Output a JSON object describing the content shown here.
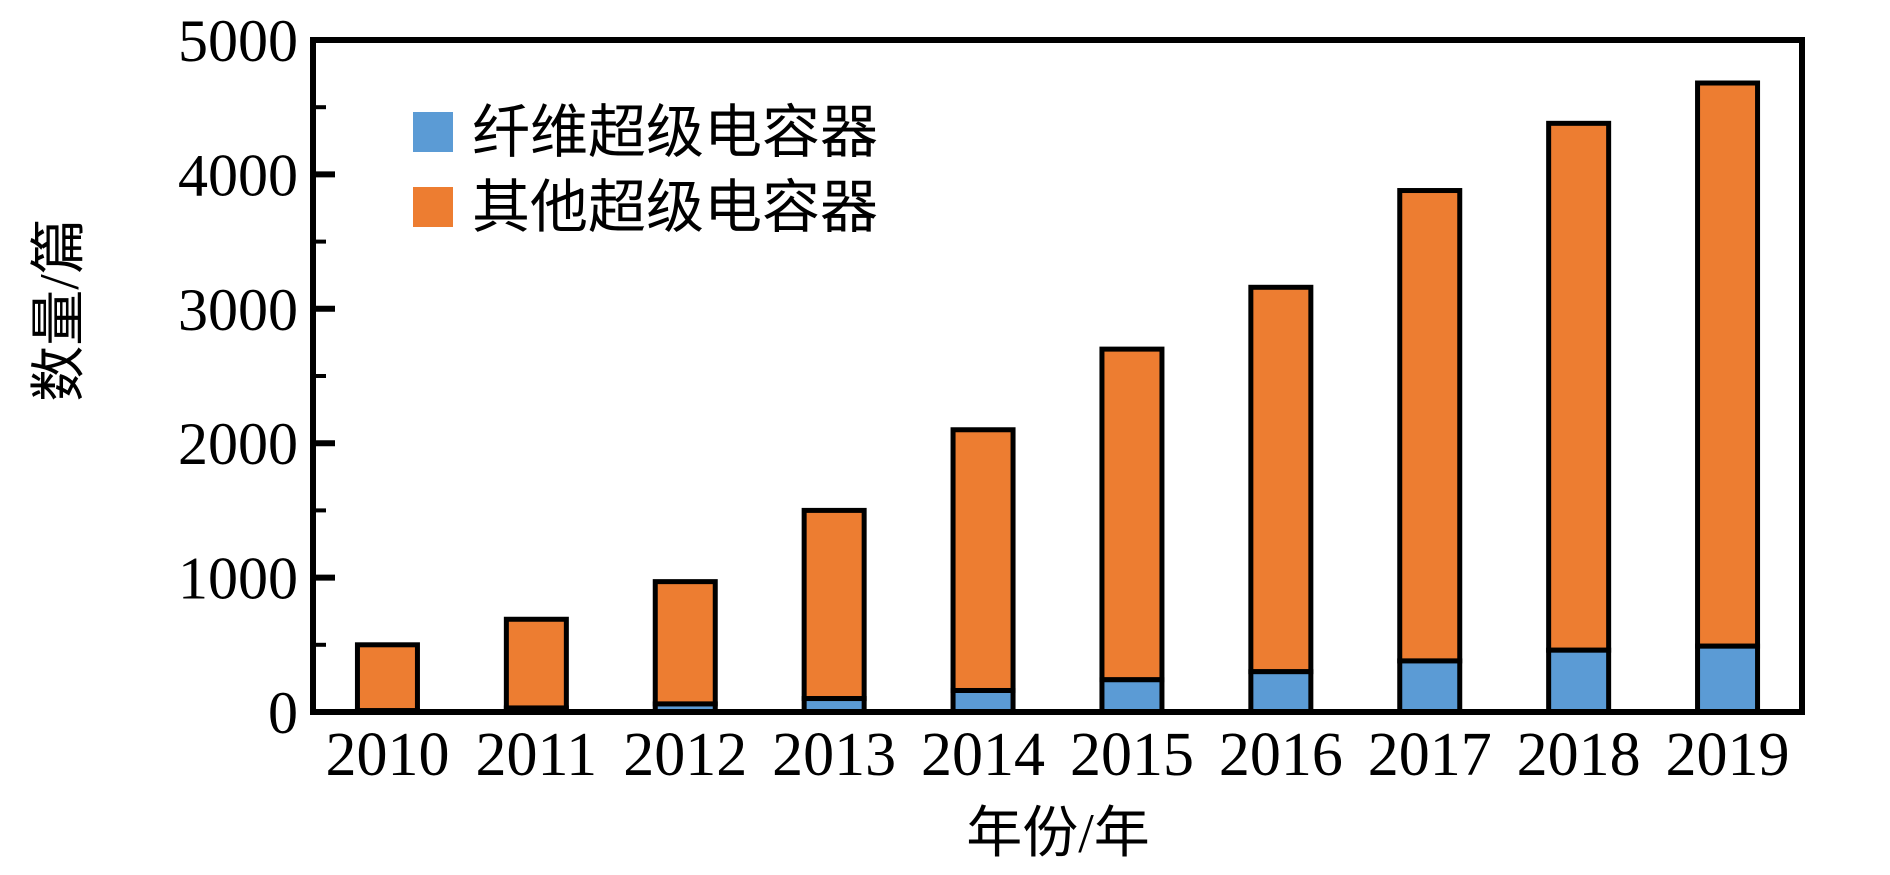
{
  "chart_data": {
    "type": "bar",
    "stacked": true,
    "title": "",
    "xlabel": "年份/年",
    "ylabel": "数量/篇",
    "categories": [
      "2010",
      "2011",
      "2012",
      "2013",
      "2014",
      "2015",
      "2016",
      "2017",
      "2018",
      "2019"
    ],
    "series": [
      {
        "name": "纤维超级电容器",
        "color": "#5B9BD5",
        "values": [
          10,
          30,
          60,
          100,
          160,
          240,
          300,
          380,
          460,
          490
        ]
      },
      {
        "name": "其他超级电容器",
        "color": "#ED7D31",
        "values": [
          490,
          660,
          910,
          1400,
          1940,
          2460,
          2860,
          3500,
          3920,
          4190
        ]
      }
    ],
    "stack_totals": [
      500,
      690,
      970,
      1500,
      2100,
      2700,
      3160,
      3880,
      4380,
      4680
    ],
    "ylim": [
      0,
      5000
    ],
    "yticks": [
      0,
      1000,
      2000,
      3000,
      4000,
      5000
    ],
    "minor_tick_step": 500,
    "grid": "off",
    "legend_position": "top-left-inside",
    "bar_outline_color": "#000000",
    "axis_color": "#000000",
    "background_color": "#ffffff"
  }
}
